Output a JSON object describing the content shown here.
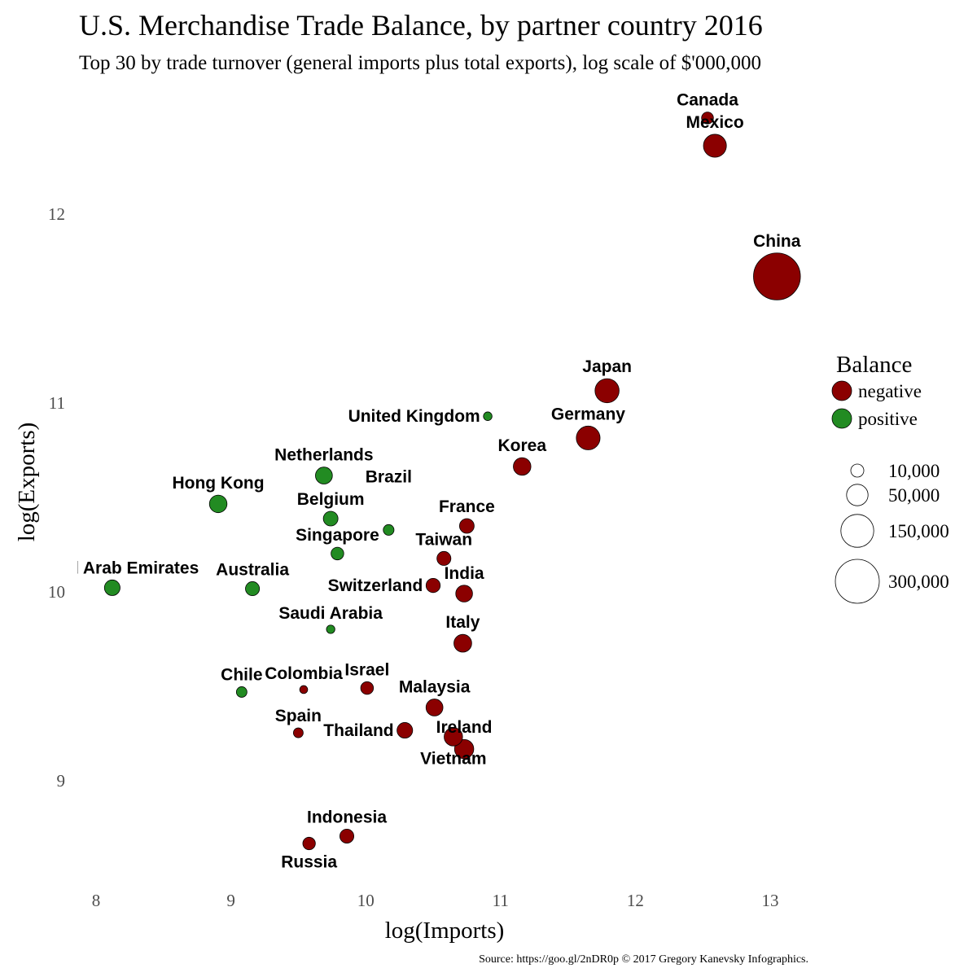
{
  "chart_data": {
    "type": "scatter",
    "title": "U.S. Merchandise Trade Balance, by partner country 2016",
    "subtitle": "Top 30 by trade turnover (general imports plus total exports), log scale of $'000,000",
    "xlabel": "log(Imports)",
    "ylabel": "log(Exports)",
    "xlim": [
      7.9,
      13.2
    ],
    "ylim": [
      8.5,
      12.6
    ],
    "xticks": [
      8,
      9,
      10,
      11,
      12,
      13
    ],
    "yticks": [
      9,
      10,
      11,
      12
    ],
    "grid": false,
    "size_variable": "absolute trade balance ($'000,000)",
    "points": [
      {
        "country": "Canada",
        "x": 12.535,
        "y": 12.509,
        "balance": "negative"
      },
      {
        "country": "Mexico",
        "x": 12.59,
        "y": 12.362,
        "balance": "negative"
      },
      {
        "country": "China",
        "x": 13.05,
        "y": 11.67,
        "balance": "negative"
      },
      {
        "country": "Japan",
        "x": 11.79,
        "y": 11.065,
        "balance": "negative"
      },
      {
        "country": "United Kingdom",
        "x": 10.905,
        "y": 10.93,
        "balance": "positive"
      },
      {
        "country": "Germany",
        "x": 11.65,
        "y": 10.815,
        "balance": "negative"
      },
      {
        "country": "Korea",
        "x": 11.16,
        "y": 10.664,
        "balance": "negative"
      },
      {
        "country": "Netherlands",
        "x": 9.69,
        "y": 10.616,
        "balance": "positive"
      },
      {
        "country": "Hong Kong",
        "x": 8.906,
        "y": 10.466,
        "balance": "positive"
      },
      {
        "country": "Belgium",
        "x": 9.74,
        "y": 10.388,
        "balance": "positive"
      },
      {
        "country": "Brazil",
        "x": 10.17,
        "y": 10.328,
        "balance": "positive"
      },
      {
        "country": "France",
        "x": 10.75,
        "y": 10.349,
        "balance": "negative"
      },
      {
        "country": "Singapore",
        "x": 9.79,
        "y": 10.203,
        "balance": "positive"
      },
      {
        "country": "Taiwan",
        "x": 10.58,
        "y": 10.177,
        "balance": "negative"
      },
      {
        "country": "Switzerland",
        "x": 10.5,
        "y": 10.034,
        "balance": "negative"
      },
      {
        "country": "India",
        "x": 10.73,
        "y": 9.991,
        "balance": "negative"
      },
      {
        "country": "United Arab Emirates",
        "x": 8.12,
        "y": 10.022,
        "balance": "positive"
      },
      {
        "country": "Australia",
        "x": 9.16,
        "y": 10.017,
        "balance": "positive"
      },
      {
        "country": "Saudi Arabia",
        "x": 9.74,
        "y": 9.802,
        "balance": "positive"
      },
      {
        "country": "Italy",
        "x": 10.72,
        "y": 9.728,
        "balance": "negative"
      },
      {
        "country": "Chile",
        "x": 9.08,
        "y": 9.47,
        "balance": "positive"
      },
      {
        "country": "Colombia",
        "x": 9.54,
        "y": 9.483,
        "balance": "negative"
      },
      {
        "country": "Israel",
        "x": 10.01,
        "y": 9.491,
        "balance": "negative"
      },
      {
        "country": "Malaysia",
        "x": 10.51,
        "y": 9.388,
        "balance": "negative"
      },
      {
        "country": "Spain",
        "x": 9.5,
        "y": 9.254,
        "balance": "negative"
      },
      {
        "country": "Thailand",
        "x": 10.29,
        "y": 9.267,
        "balance": "negative"
      },
      {
        "country": "Vietnam",
        "x": 10.65,
        "y": 9.233,
        "balance": "negative"
      },
      {
        "country": "Ireland",
        "x": 10.73,
        "y": 9.168,
        "balance": "negative"
      },
      {
        "country": "Indonesia",
        "x": 9.86,
        "y": 8.707,
        "balance": "negative"
      },
      {
        "country": "Russia",
        "x": 9.58,
        "y": 8.668,
        "balance": "negative"
      }
    ],
    "legend": {
      "color_title": "Balance",
      "color_entries": [
        {
          "label": "negative",
          "color": "#8b0000"
        },
        {
          "label": "positive",
          "color": "#228b22"
        }
      ],
      "size_entries": [
        {
          "label": "10,000",
          "value": 10000
        },
        {
          "label": "50,000",
          "value": 50000
        },
        {
          "label": "150,000",
          "value": 150000
        },
        {
          "label": "300,000",
          "value": 300000
        }
      ],
      "placement": "right"
    },
    "caption": "Source: https://goo.gl/2nDR0p © 2017 Gregory Kanevsky Infographics."
  }
}
